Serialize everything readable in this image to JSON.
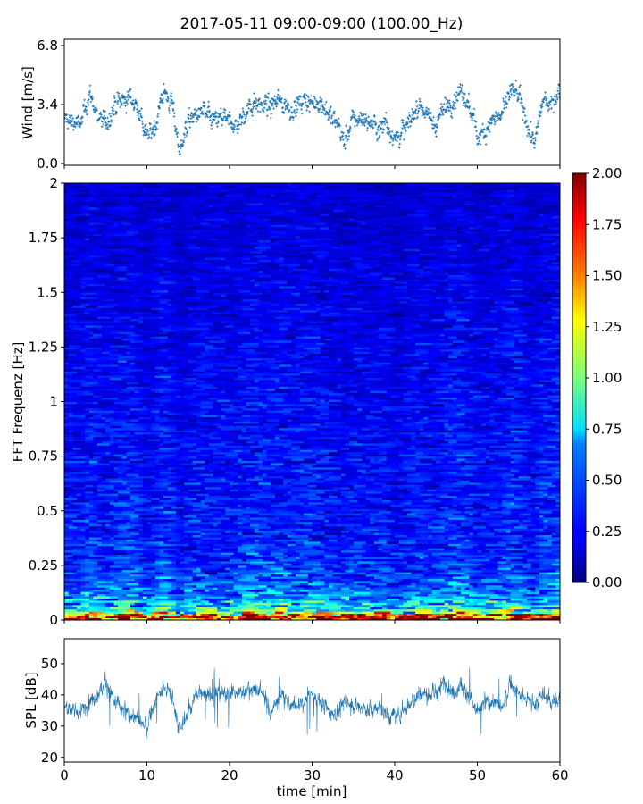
{
  "title": "2017-05-11 09:00-09:00 (100.00_Hz)",
  "chart_data": [
    {
      "type": "scatter",
      "panel": "wind",
      "ylabel": "Wind [m/s]",
      "xlabel": "",
      "xlim": [
        0,
        60
      ],
      "ylim": [
        0.0,
        6.8
      ],
      "yticks": [
        0.0,
        3.4,
        6.8
      ],
      "ytick_labels": [
        "0.0",
        "3.4",
        "6.8"
      ],
      "xticks": [
        0,
        10,
        20,
        30,
        40,
        50,
        60
      ],
      "marker_color": "#1f77b4",
      "series": [
        {
          "x": [
            0,
            1,
            2,
            3,
            4,
            5,
            6,
            7,
            8,
            9,
            10,
            11,
            12,
            13,
            14,
            15,
            16,
            17,
            18,
            19,
            20,
            21,
            22,
            23,
            24,
            25,
            26,
            27,
            28,
            29,
            30,
            31,
            32,
            33,
            34,
            35,
            36,
            37,
            38,
            39,
            40,
            41,
            42,
            43,
            44,
            45,
            46,
            47,
            48,
            49,
            50,
            51,
            52,
            53,
            54,
            55,
            56,
            57,
            58,
            59,
            60
          ],
          "values": [
            2.6,
            2.4,
            2.2,
            4.0,
            2.8,
            2.2,
            3.2,
            3.6,
            3.8,
            3.2,
            1.4,
            2.2,
            4.2,
            3.4,
            0.8,
            2.4,
            2.8,
            3.0,
            2.4,
            2.6,
            2.4,
            2.2,
            3.0,
            3.6,
            3.4,
            3.2,
            3.8,
            3.2,
            3.2,
            3.6,
            3.4,
            3.6,
            2.8,
            2.4,
            1.2,
            2.6,
            2.6,
            2.4,
            2.0,
            2.4,
            1.4,
            1.8,
            2.6,
            3.4,
            2.8,
            2.2,
            3.2,
            3.6,
            4.0,
            3.4,
            1.6,
            2.0,
            2.6,
            2.8,
            4.2,
            3.8,
            2.2,
            1.2,
            3.8,
            3.4,
            4.4
          ]
        }
      ]
    },
    {
      "type": "heatmap",
      "panel": "spectrogram",
      "ylabel": "FFT Frequenz [Hz]",
      "xlabel": "",
      "xlim": [
        0,
        60
      ],
      "ylim": [
        0,
        2
      ],
      "yticks": [
        0,
        0.25,
        0.5,
        0.75,
        1,
        1.25,
        1.5,
        1.75,
        2
      ],
      "ytick_labels": [
        "0",
        "0.25",
        "0.5",
        "0.75",
        "1",
        "1.25",
        "1.5",
        "1.75",
        "2"
      ],
      "colormap": "jet",
      "colorbar": {
        "vmin": 0.0,
        "vmax": 2.0,
        "ticks": [
          0.0,
          0.25,
          0.5,
          0.75,
          1.0,
          1.25,
          1.5,
          1.75,
          2.0
        ],
        "tick_labels": [
          "0.00",
          "0.25",
          "0.50",
          "0.75",
          "1.00",
          "1.25",
          "1.50",
          "1.75",
          "2.00"
        ]
      },
      "freq_profile": {
        "freqs": [
          0.0,
          0.02,
          0.05,
          0.1,
          0.15,
          0.25,
          0.5,
          1.0,
          1.5,
          2.0
        ],
        "typical_values": [
          1.9,
          1.3,
          0.75,
          0.55,
          0.42,
          0.33,
          0.28,
          0.24,
          0.2,
          0.16
        ]
      }
    },
    {
      "type": "line",
      "panel": "spl",
      "ylabel": "SPL [dB]",
      "xlabel": "time [min]",
      "xlim": [
        0,
        60
      ],
      "ylim": [
        18.5,
        58
      ],
      "yticks": [
        20,
        30,
        40,
        50
      ],
      "ytick_labels": [
        "20",
        "30",
        "40",
        "50"
      ],
      "xticks": [
        0,
        10,
        20,
        30,
        40,
        50,
        60
      ],
      "xtick_labels": [
        "0",
        "10",
        "20",
        "30",
        "40",
        "50",
        "60"
      ],
      "line_color": "#1f77b4",
      "series": [
        {
          "x": [
            0,
            1,
            2,
            3,
            4,
            5,
            6,
            7,
            8,
            9,
            10,
            11,
            12,
            13,
            14,
            15,
            16,
            17,
            18,
            19,
            20,
            21,
            22,
            23,
            24,
            25,
            26,
            27,
            28,
            29,
            30,
            31,
            32,
            33,
            34,
            35,
            36,
            37,
            38,
            39,
            40,
            41,
            42,
            43,
            44,
            45,
            46,
            47,
            48,
            49,
            50,
            51,
            52,
            53,
            54,
            55,
            56,
            57,
            58,
            59,
            60
          ],
          "values": [
            36,
            35,
            34,
            38,
            40,
            44,
            38,
            35,
            34,
            32,
            30,
            38,
            42,
            40,
            28,
            35,
            40,
            41,
            40,
            40,
            41,
            40,
            42,
            42,
            41,
            34,
            40,
            38,
            36,
            38,
            40,
            38,
            35,
            34,
            38,
            37,
            36,
            35,
            36,
            34,
            33,
            35,
            38,
            41,
            40,
            40,
            44,
            41,
            43,
            40,
            34,
            38,
            38,
            36,
            44,
            40,
            38,
            37,
            40,
            38,
            38
          ]
        }
      ]
    }
  ]
}
